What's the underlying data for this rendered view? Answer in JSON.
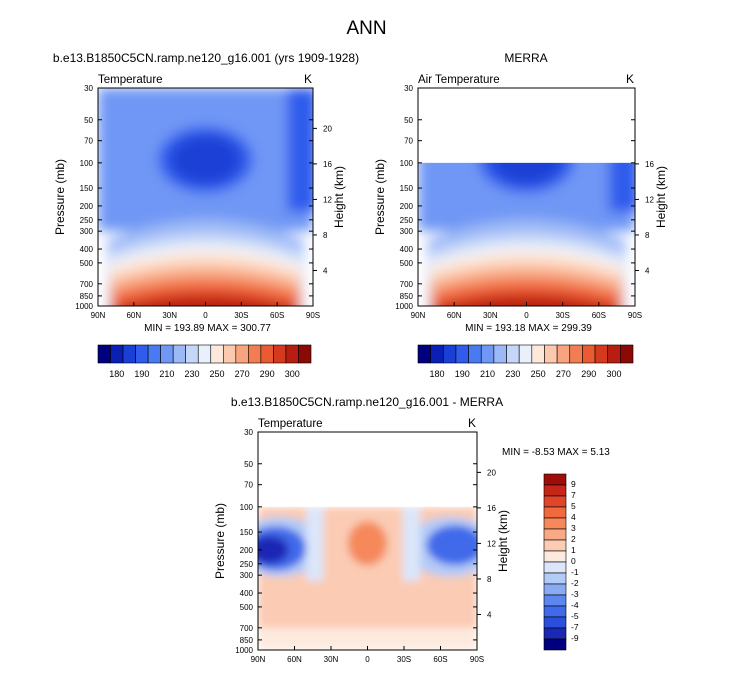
{
  "figure": {
    "title": "ANN",
    "colors": {
      "temp_scale": [
        "#00007f",
        "#0a1fb3",
        "#1a3fd6",
        "#2f5cec",
        "#4a7af2",
        "#6f97f5",
        "#9bb8f7",
        "#c5d7f8",
        "#eaf0fb",
        "#fde9dc",
        "#fbc9ad",
        "#f8a57f",
        "#f37d53",
        "#ea5a33",
        "#d63a1e",
        "#b71d10",
        "#8c0a05"
      ],
      "diff_scale": [
        "#00007f",
        "#1a28b5",
        "#2a4fdc",
        "#3f6aea",
        "#5c86f0",
        "#8aabf4",
        "#b3cbf7",
        "#dbe6fa",
        "#fdeadf",
        "#fbcbb3",
        "#f8aa86",
        "#f5895c",
        "#f06a3d",
        "#e0452a",
        "#c52616",
        "#9e0d07"
      ]
    }
  },
  "panels": [
    {
      "title": "b.e13.B1850C5CN.ramp.ne120_g16.001 (yrs 1909-1928)",
      "left_label": "Temperature",
      "units": "K",
      "min_max": "MIN = 193.89  MAX = 300.77"
    },
    {
      "title": "MERRA",
      "left_label": "Air Temperature",
      "units": "K",
      "min_max": "MIN = 193.18  MAX = 299.39"
    },
    {
      "title": "b.e13.B1850C5CN.ramp.ne120_g16.001 - MERRA",
      "left_label": "Temperature",
      "units": "K",
      "min_max": "MIN =  -8.53  MAX =   5.13"
    }
  ],
  "chart_data": [
    {
      "type": "heatmap",
      "title": "b.e13.B1850C5CN.ramp.ne120_g16.001 (yrs 1909-1928)",
      "xlabel": "",
      "ylabel": "Pressure (mb)",
      "y2label": "Height (km)",
      "x_ticks": [
        "90N",
        "60N",
        "30N",
        "0",
        "30S",
        "60S",
        "90S"
      ],
      "y_ticks": [
        30,
        50,
        70,
        100,
        150,
        200,
        250,
        300,
        400,
        500,
        700,
        850,
        1000
      ],
      "y2_ticks": [
        20,
        16,
        12,
        8,
        4
      ],
      "ylim": [
        1000,
        30
      ],
      "y_scale": "log",
      "colorbar_labels": [
        "180",
        "190",
        "210",
        "230",
        "250",
        "270",
        "290",
        "300"
      ],
      "min": 193.89,
      "max": 300.77
    },
    {
      "type": "heatmap",
      "title": "MERRA",
      "xlabel": "",
      "ylabel": "Pressure (mb)",
      "y2label": "Height (km)",
      "x_ticks": [
        "90N",
        "60N",
        "30N",
        "0",
        "30S",
        "60S",
        "90S"
      ],
      "y_ticks": [
        30,
        50,
        70,
        100,
        150,
        200,
        250,
        300,
        400,
        500,
        700,
        850,
        1000
      ],
      "y2_ticks": [
        16,
        12,
        8,
        4
      ],
      "ylim": [
        1000,
        30
      ],
      "y_scale": "log",
      "colorbar_labels": [
        "180",
        "190",
        "210",
        "230",
        "250",
        "270",
        "290",
        "300"
      ],
      "min": 193.18,
      "max": 299.39
    },
    {
      "type": "heatmap",
      "title": "b.e13.B1850C5CN.ramp.ne120_g16.001 - MERRA",
      "xlabel": "",
      "ylabel": "Pressure (mb)",
      "y2label": "Height (km)",
      "x_ticks": [
        "90N",
        "60N",
        "30N",
        "0",
        "30S",
        "60S",
        "90S"
      ],
      "y_ticks": [
        30,
        50,
        70,
        100,
        150,
        200,
        250,
        300,
        400,
        500,
        700,
        850,
        1000
      ],
      "y2_ticks": [
        20,
        16,
        12,
        8,
        4
      ],
      "ylim": [
        1000,
        30
      ],
      "y_scale": "log",
      "colorbar_labels": [
        "9",
        "7",
        "5",
        "4",
        "3",
        "2",
        "1",
        "0",
        "-1",
        "-2",
        "-3",
        "-4",
        "-5",
        "-7",
        "-9"
      ],
      "min": -8.53,
      "max": 5.13
    }
  ]
}
